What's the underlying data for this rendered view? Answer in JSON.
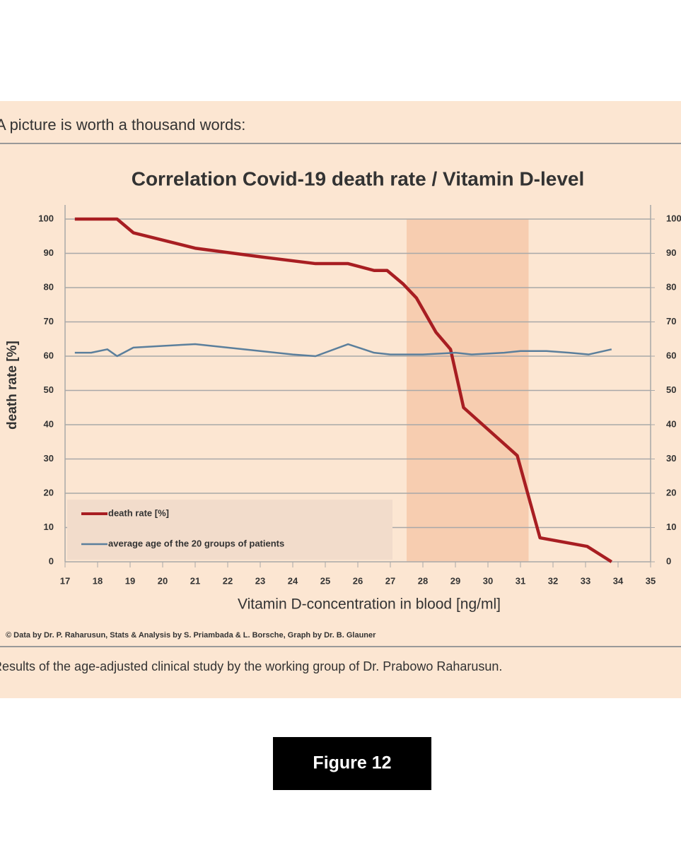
{
  "chart_data": {
    "type": "line",
    "heading": "A picture is worth a thousand words:",
    "title": "Correlation Covid-19 death rate / Vitamin D-level",
    "xlabel": "Vitamin D-concentration in blood [ng/ml]",
    "ylabel": "death rate [%]",
    "credit": "© Data by Dr. P. Raharusun, Stats & Analysis by S. Priambada & L. Borsche, Graph by Dr. B. Glauner",
    "caption": "Results of the age-adjusted clinical study by the working group of Dr. Prabowo Raharusun.",
    "figure_label": "Figure 12",
    "xlim": [
      17,
      35
    ],
    "xticks": [
      17,
      18,
      19,
      20,
      21,
      22,
      23,
      24,
      25,
      26,
      27,
      28,
      29,
      30,
      31,
      32,
      33,
      34,
      35
    ],
    "ylim": [
      0,
      100
    ],
    "yticks": [
      0,
      10,
      20,
      30,
      40,
      50,
      60,
      70,
      80,
      90,
      100
    ],
    "y2lim": [
      0,
      100
    ],
    "y2ticks": [
      0,
      10,
      20,
      30,
      40,
      50,
      60,
      70,
      80,
      90,
      100
    ],
    "grid": true,
    "legend": "lower left",
    "shaded_region": {
      "x": [
        27.5,
        31.25
      ],
      "color": "#f7cdb0"
    },
    "series": [
      {
        "name": "death rate [%]",
        "color": "#a81e22",
        "x": [
          17.3,
          18.6,
          19.1,
          21,
          23,
          24.7,
          25.7,
          26.5,
          26.9,
          27.4,
          27.8,
          28.4,
          28.85,
          29.25,
          30.9,
          31.6,
          33.05,
          33.8
        ],
        "values": [
          100,
          100,
          96,
          91.5,
          89,
          87,
          87,
          85,
          85,
          81,
          77,
          67,
          62,
          45,
          31,
          7,
          4.5,
          0
        ]
      },
      {
        "name": "average age of the 20 groups of patients",
        "color": "#5b7f9c",
        "x": [
          17.3,
          17.8,
          18.3,
          18.6,
          19.1,
          20,
          21,
          22,
          23,
          24,
          24.7,
          25.7,
          26.5,
          27,
          28,
          29,
          29.5,
          30.5,
          31,
          31.8,
          32.5,
          33.1,
          33.8
        ],
        "values": [
          61,
          61,
          62,
          60,
          62.5,
          63,
          63.5,
          62.5,
          61.5,
          60.5,
          60,
          63.5,
          61,
          60.5,
          60.5,
          61,
          60.5,
          61,
          61.5,
          61.5,
          61,
          60.5,
          62
        ]
      }
    ]
  }
}
